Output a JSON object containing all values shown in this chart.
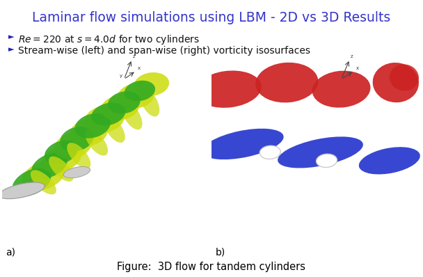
{
  "title": "Laminar flow simulations using LBM - 2D vs 3D Results",
  "title_color": "#3333cc",
  "title_fontsize": 13.5,
  "bullet1": "$Re = 220$ at $s = 4.0d$ for two cylinders",
  "bullet2": "Stream-wise (left) and span-wise (right) vorticity isosurfaces",
  "bullet_color": "#111111",
  "bullet_fontsize": 10,
  "bullet_marker_color": "#2222bb",
  "label_a": "a)",
  "label_b": "b)",
  "label_fontsize": 10,
  "caption": "Figure:  3D flow for tandem cylinders",
  "caption_fontsize": 10.5,
  "panel_bg": "#ffffff",
  "green_dark": "#33aa22",
  "green_light": "#ccdd11",
  "red_color": "#cc2222",
  "blue_color": "#2233cc",
  "cyl_color": "#cccccc",
  "white": "#ffffff"
}
